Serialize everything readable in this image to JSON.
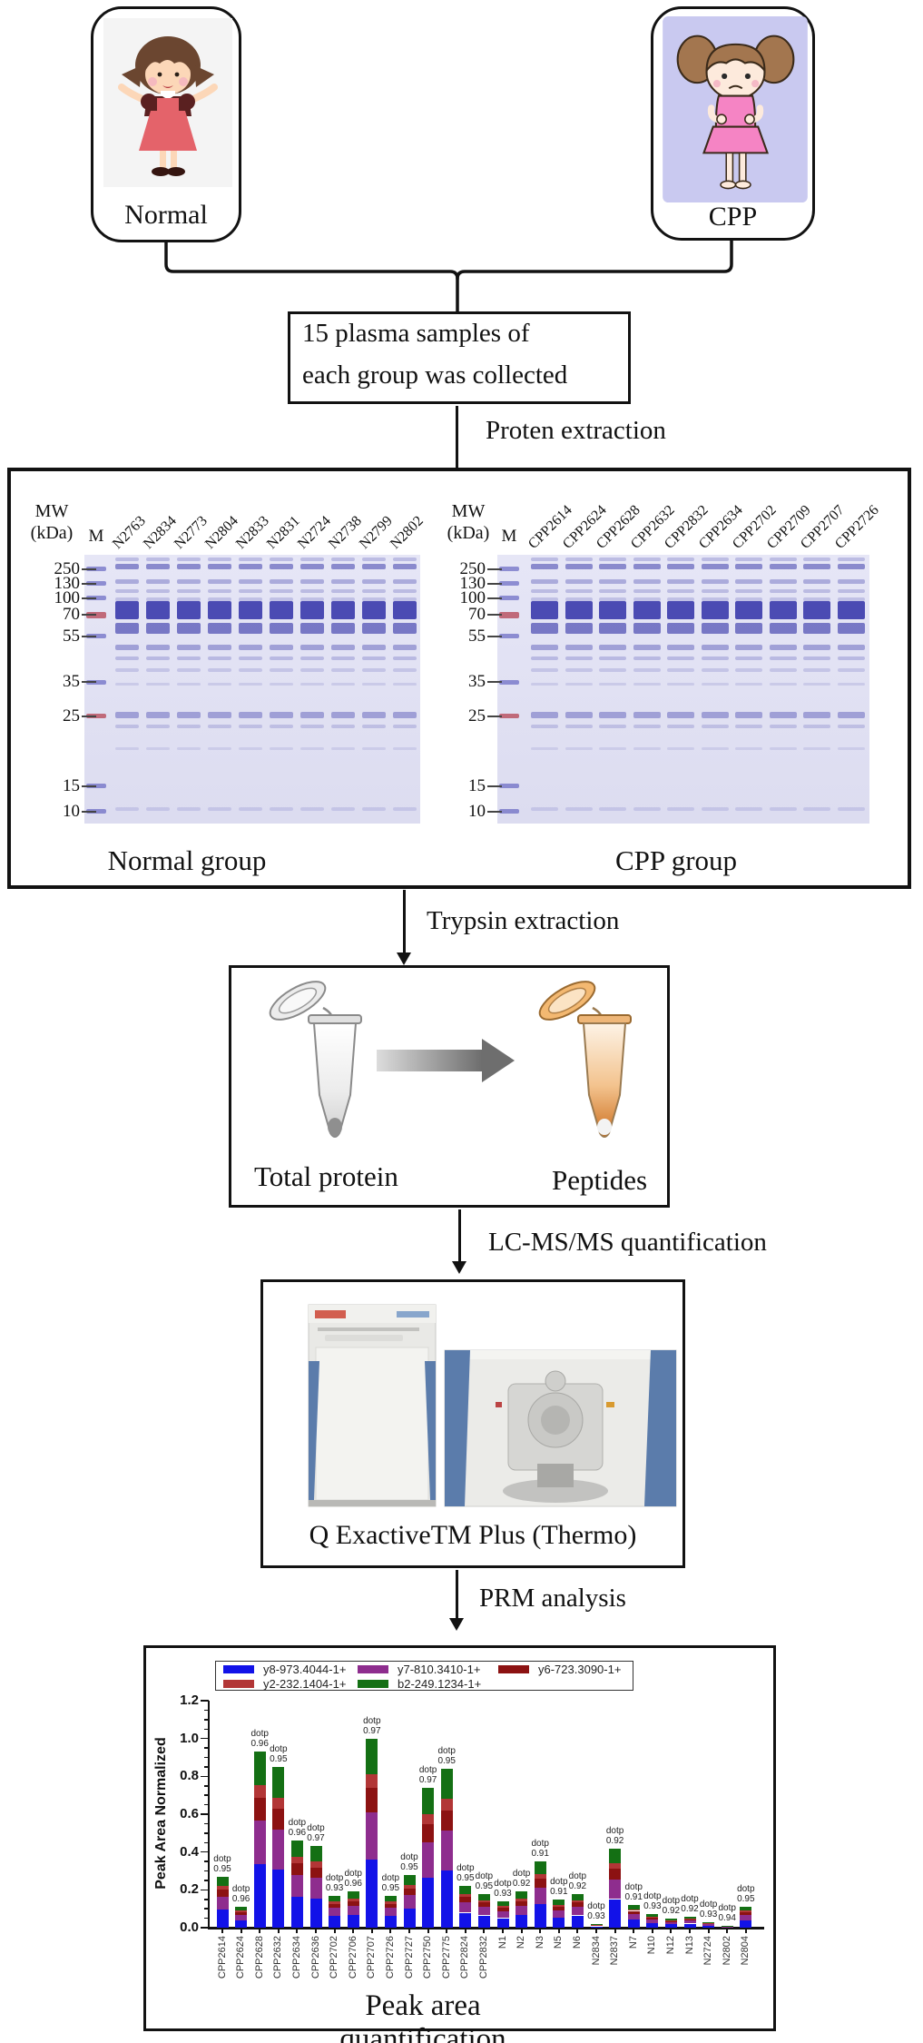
{
  "subjects": {
    "normal_label": "Normal",
    "cpp_label": "CPP"
  },
  "collection_box": {
    "line1": "15 plasma samples of",
    "line2": "each group was collected"
  },
  "step_labels": {
    "protein_extraction": "Proten extraction",
    "trypsin_extraction": "Trypsin extraction",
    "lcms_quantification": "LC-MS/MS quantification",
    "prm_analysis": "PRM analysis"
  },
  "gel_panel": {
    "mw_header_line1": "MW",
    "mw_header_line2": "(kDa)",
    "marker_lane_label": "M",
    "mw_values": [
      "250",
      "130",
      "100",
      "70",
      "55",
      "35",
      "25",
      "15",
      "10"
    ],
    "left_gel": {
      "caption": "Normal group",
      "lanes": [
        "N2763",
        "N2834",
        "N2773",
        "N2804",
        "N2833",
        "N2831",
        "N2724",
        "N2738",
        "N2799",
        "N2802"
      ]
    },
    "right_gel": {
      "caption": "CPP group",
      "lanes": [
        "CPP2614",
        "CPP2624",
        "CPP2628",
        "CPP2632",
        "CPP2832",
        "CPP2634",
        "CPP2702",
        "CPP2709",
        "CPP2707",
        "CPP2726"
      ]
    }
  },
  "digestion_box": {
    "source_label": "Total protein",
    "product_label": "Peptides"
  },
  "ms_box": {
    "caption": "Q ExactiveTM Plus (Thermo)"
  },
  "chart_caption": "Peak area quantification",
  "chart_data": {
    "type": "bar",
    "stacked": true,
    "title": "Peak area quantification",
    "xlabel": "",
    "ylabel": "Peak Area Normalized",
    "ylim": [
      0,
      1.2
    ],
    "yticks": [
      "0.0",
      "0.2",
      "0.4",
      "0.6",
      "0.8",
      "1.0",
      "1.2"
    ],
    "grid": false,
    "legend_position": "top",
    "legend": [
      {
        "label": "y8-973.4044-1+",
        "color": "#1212e8"
      },
      {
        "label": "y7-810.3410-1+",
        "color": "#8e2d8e"
      },
      {
        "label": "y6-723.3090-1+",
        "color": "#8c1212"
      },
      {
        "label": "y2-232.1404-1+",
        "color": "#b23636"
      },
      {
        "label": "b2-249.1234-1+",
        "color": "#147014"
      }
    ],
    "stack_order_bottom_to_top": [
      0,
      1,
      2,
      3,
      4
    ],
    "stack_fractions": [
      0.36,
      0.25,
      0.13,
      0.07,
      0.19
    ],
    "annotation_prefix": "dotp",
    "categories": [
      "CPP2614",
      "CPP2624",
      "CPP2628",
      "CPP2632",
      "CPP2634",
      "CPP2636",
      "CPP2702",
      "CPP2706",
      "CPP2707",
      "CPP2726",
      "CPP2727",
      "CPP2750",
      "CPP2775",
      "CPP2824",
      "CPP2832",
      "N1",
      "N2",
      "N3",
      "N5",
      "N6",
      "N2834",
      "N2837",
      "N7",
      "N10",
      "N12",
      "N13",
      "N2724",
      "N2802",
      "N2804"
    ],
    "totals": [
      0.27,
      0.11,
      0.93,
      0.85,
      0.46,
      0.43,
      0.17,
      0.19,
      1.0,
      0.17,
      0.28,
      0.74,
      0.84,
      0.22,
      0.18,
      0.14,
      0.19,
      0.35,
      0.15,
      0.18,
      0.02,
      0.42,
      0.12,
      0.07,
      0.05,
      0.06,
      0.03,
      0.01,
      0.11
    ],
    "dotp": [
      "0.95",
      "0.96",
      "0.96",
      "0.95",
      "0.96",
      "0.97",
      "0.93",
      "0.96",
      "0.97",
      "0.95",
      "0.95",
      "0.97",
      "0.95",
      "0.95",
      "0.95",
      "0.93",
      "0.92",
      "0.91",
      "0.91",
      "0.92",
      "0.93",
      "0.92",
      "0.91",
      "0.93",
      "0.92",
      "0.92",
      "0.93",
      "0.94",
      "0.95"
    ]
  }
}
